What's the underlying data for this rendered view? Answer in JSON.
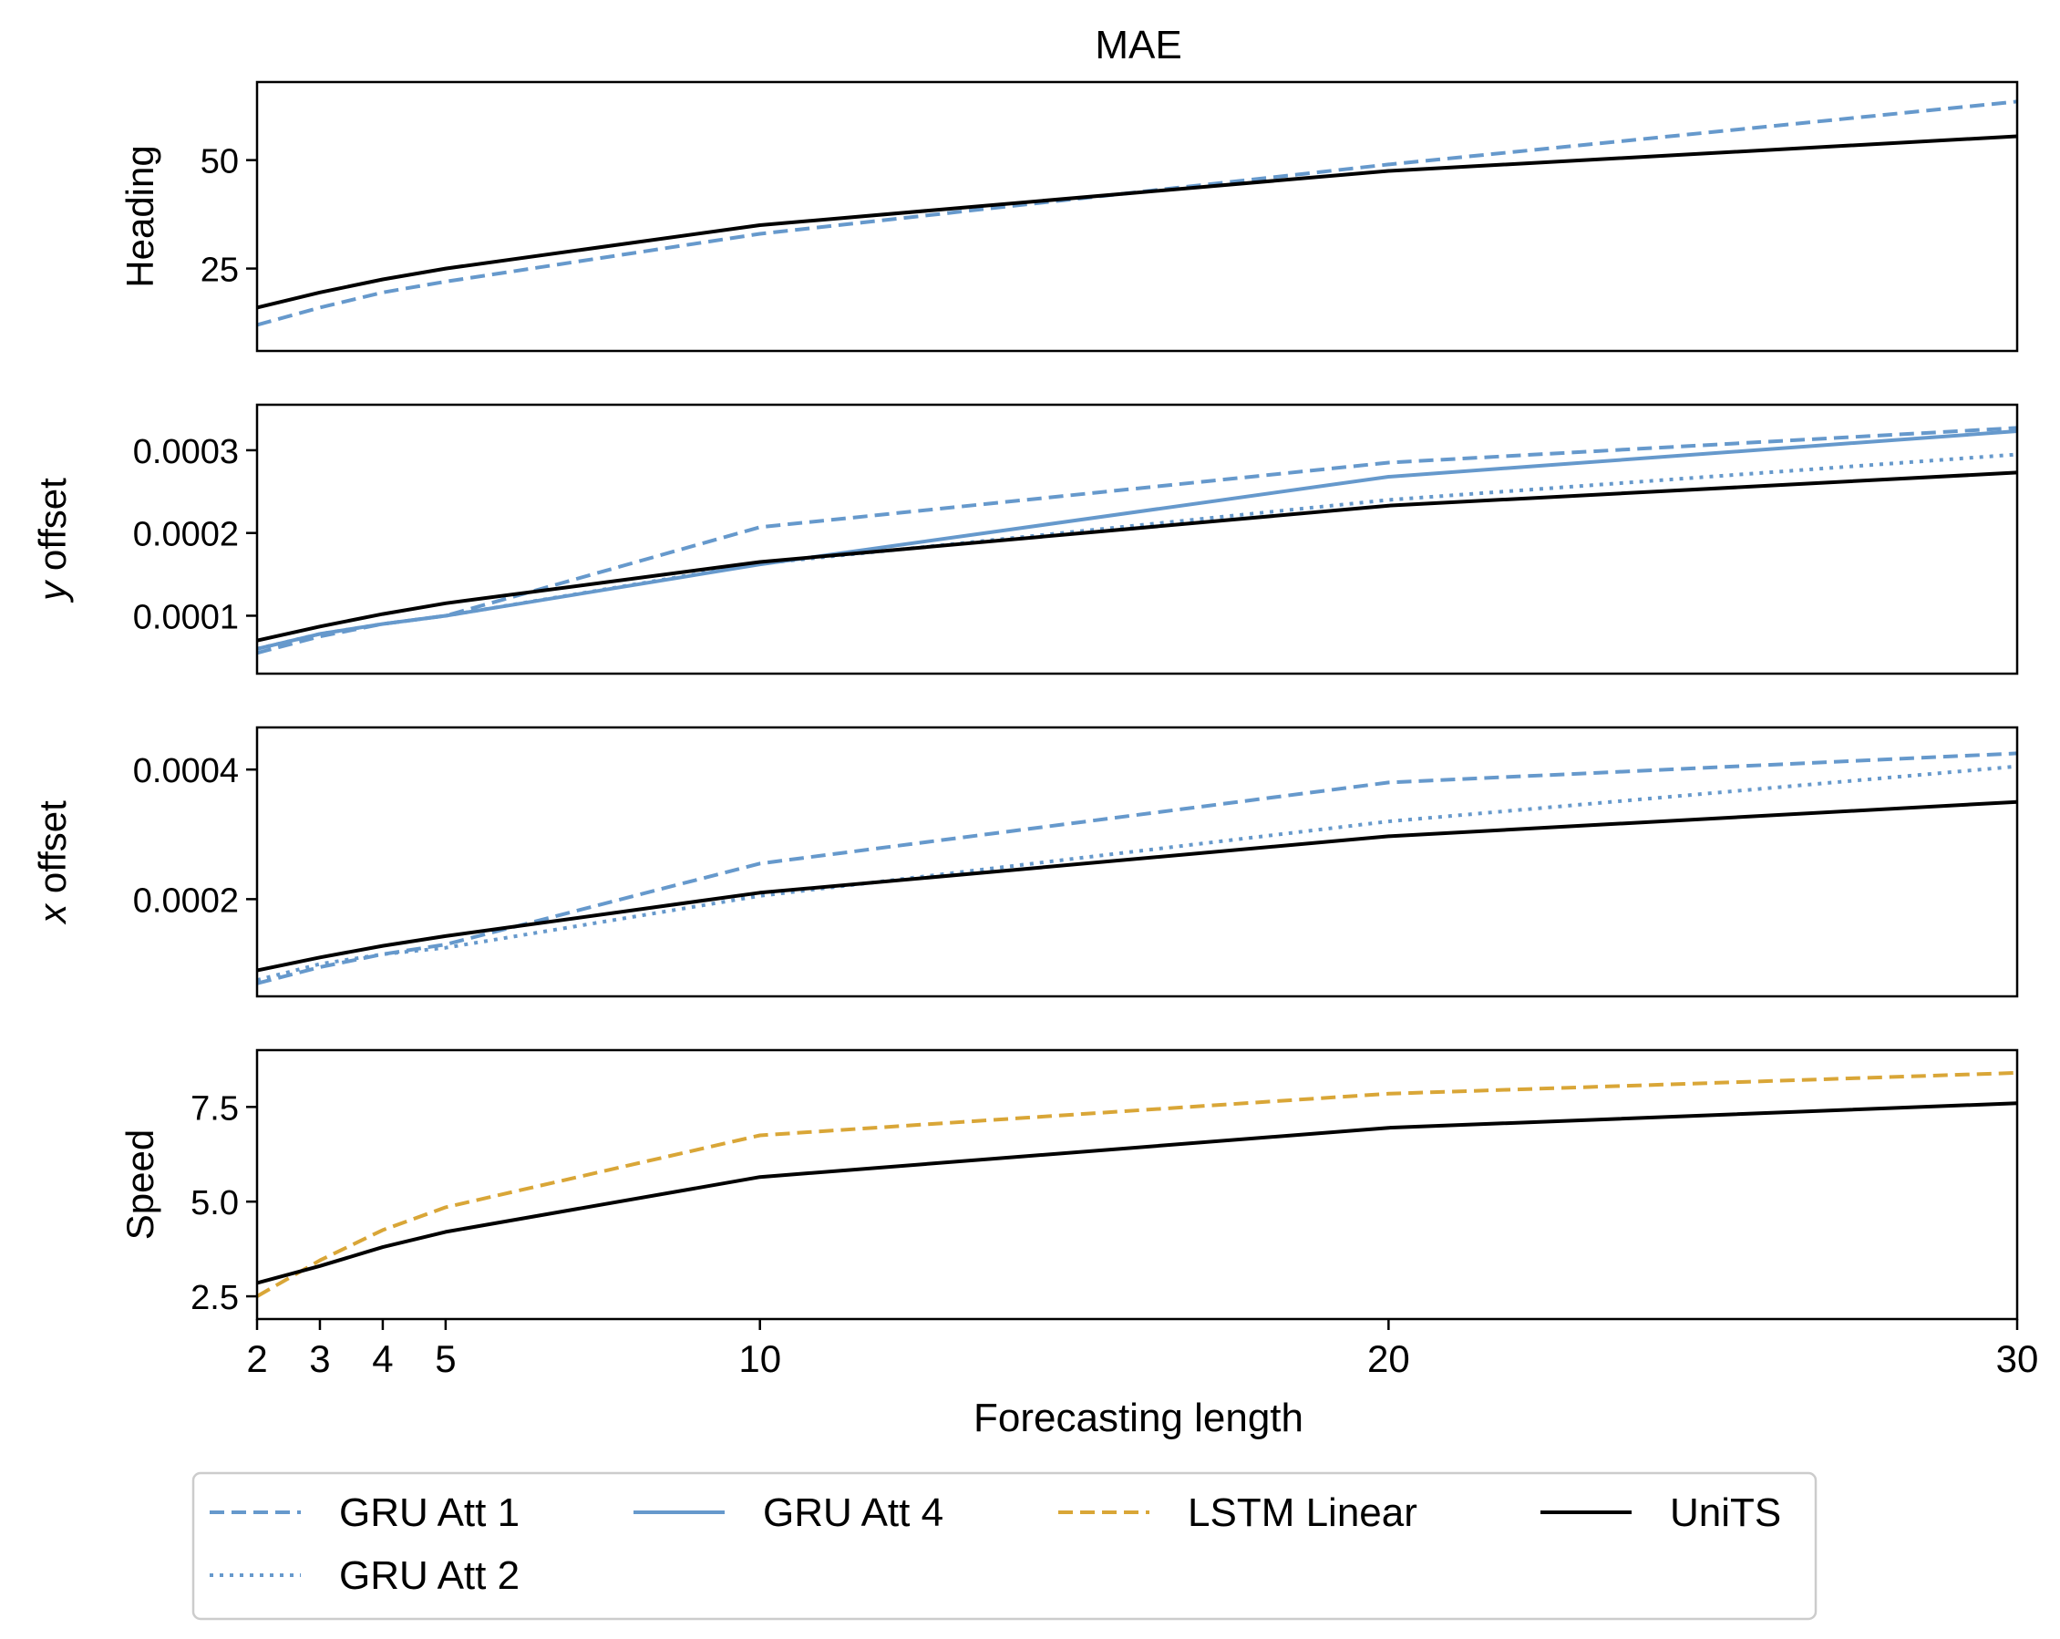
{
  "chart_data": {
    "type": "line",
    "title": "MAE",
    "xlabel": "Forecasting length",
    "x_ticks": [
      2,
      3,
      4,
      5,
      10,
      20,
      30
    ],
    "xlim": [
      2,
      30
    ],
    "x": [
      2,
      3,
      4,
      5,
      10,
      20,
      30
    ],
    "series_styles": [
      {
        "name": "GRU Att 1",
        "color": "#6699cc",
        "dash": "dashed"
      },
      {
        "name": "GRU Att 2",
        "color": "#6699cc",
        "dash": "dotted"
      },
      {
        "name": "GRU Att 4",
        "color": "#6699cc",
        "dash": "solid"
      },
      {
        "name": "LSTM Linear",
        "color": "#d9a637",
        "dash": "dashed"
      },
      {
        "name": "UniTS",
        "color": "#000000",
        "dash": "solid"
      }
    ],
    "legend": {
      "placement": "bottom",
      "columns": [
        [
          "GRU Att 1",
          "GRU Att 2"
        ],
        [
          "GRU Att 4"
        ],
        [
          "LSTM Linear"
        ],
        [
          "UniTS"
        ]
      ]
    },
    "panels": [
      {
        "ylabel": "Heading",
        "ylabel_italic_prefix": "",
        "ylim": [
          6,
          68
        ],
        "yticks": [
          25,
          50
        ],
        "ytick_labels": [
          "25",
          "50"
        ],
        "series": [
          {
            "name": "GRU Att 1",
            "values": [
              12,
              16,
              19.5,
              22,
              33,
              49,
              63.5
            ]
          },
          {
            "name": "UniTS",
            "values": [
              16,
              19.5,
              22.5,
              25,
              35,
              47.5,
              55.5
            ]
          }
        ]
      },
      {
        "ylabel": " offset",
        "ylabel_italic_prefix": "y",
        "ylim": [
          3e-05,
          0.000355
        ],
        "yticks": [
          0.0001,
          0.0002,
          0.0003
        ],
        "ytick_labels": [
          "0.0001",
          "0.0002",
          "0.0003"
        ],
        "series": [
          {
            "name": "GRU Att 1",
            "values": [
              5.5e-05,
              7.5e-05,
              9e-05,
              0.0001,
              0.000207,
              0.000285,
              0.000327
            ]
          },
          {
            "name": "GRU Att 2",
            "values": [
              6e-05,
              7.8e-05,
              9e-05,
              0.0001,
              0.000163,
              0.00024,
              0.000295
            ]
          },
          {
            "name": "GRU Att 4",
            "values": [
              6e-05,
              7.8e-05,
              9e-05,
              0.0001,
              0.000162,
              0.000268,
              0.000323
            ]
          },
          {
            "name": "UniTS",
            "values": [
              7e-05,
              8.7e-05,
              0.000102,
              0.000115,
              0.000165,
              0.000233,
              0.000273
            ]
          }
        ]
      },
      {
        "ylabel": " offset",
        "ylabel_italic_prefix": "x",
        "ylim": [
          5e-05,
          0.000465
        ],
        "yticks": [
          0.0002,
          0.0004
        ],
        "ytick_labels": [
          "0.0002",
          "0.0004"
        ],
        "series": [
          {
            "name": "GRU Att 1",
            "values": [
              7e-05,
              9.5e-05,
              0.000115,
              0.00013,
              0.000255,
              0.00038,
              0.000425
            ]
          },
          {
            "name": "GRU Att 2",
            "values": [
              7.5e-05,
              0.0001,
              0.000115,
              0.000125,
              0.000205,
              0.00032,
              0.000405
            ]
          },
          {
            "name": "UniTS",
            "values": [
              9e-05,
              0.00011,
              0.000128,
              0.000143,
              0.00021,
              0.000297,
              0.00035
            ]
          }
        ]
      },
      {
        "ylabel": "Speed",
        "ylabel_italic_prefix": "",
        "ylim": [
          1.9,
          9.0
        ],
        "yticks": [
          2.5,
          5.0,
          7.5
        ],
        "ytick_labels": [
          "2.5",
          "5.0",
          "7.5"
        ],
        "series": [
          {
            "name": "LSTM Linear",
            "values": [
              2.5,
              3.45,
              4.25,
              4.85,
              6.75,
              7.85,
              8.4
            ]
          },
          {
            "name": "UniTS",
            "values": [
              2.85,
              3.3,
              3.8,
              4.2,
              5.65,
              6.95,
              7.6
            ]
          }
        ]
      }
    ]
  }
}
